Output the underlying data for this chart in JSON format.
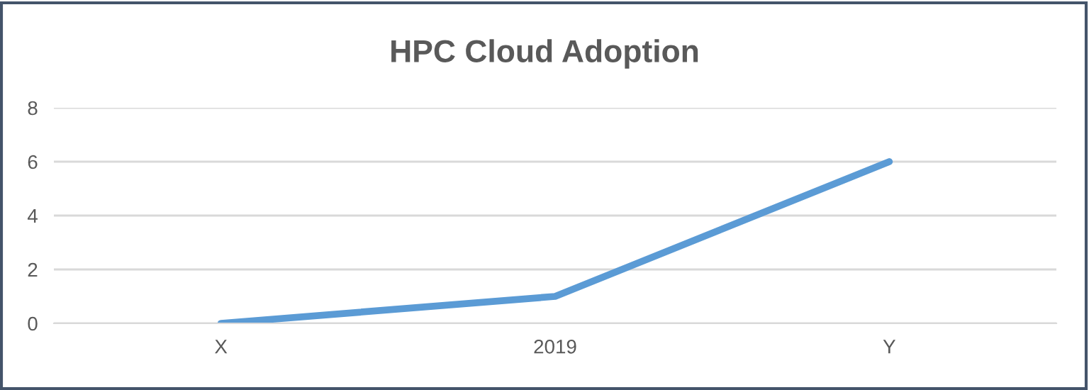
{
  "chart_data": {
    "type": "line",
    "title": "HPC Cloud Adoption",
    "categories": [
      "X",
      "2019",
      "Y"
    ],
    "series": [
      {
        "color": "#5b9bd5",
        "values": [
          0,
          1,
          6
        ]
      }
    ],
    "ylim": [
      0,
      8
    ],
    "yticks": [
      0,
      2,
      4,
      6,
      8
    ],
    "grid": "y",
    "legend": false,
    "marker": "none",
    "line_style": "solid"
  }
}
